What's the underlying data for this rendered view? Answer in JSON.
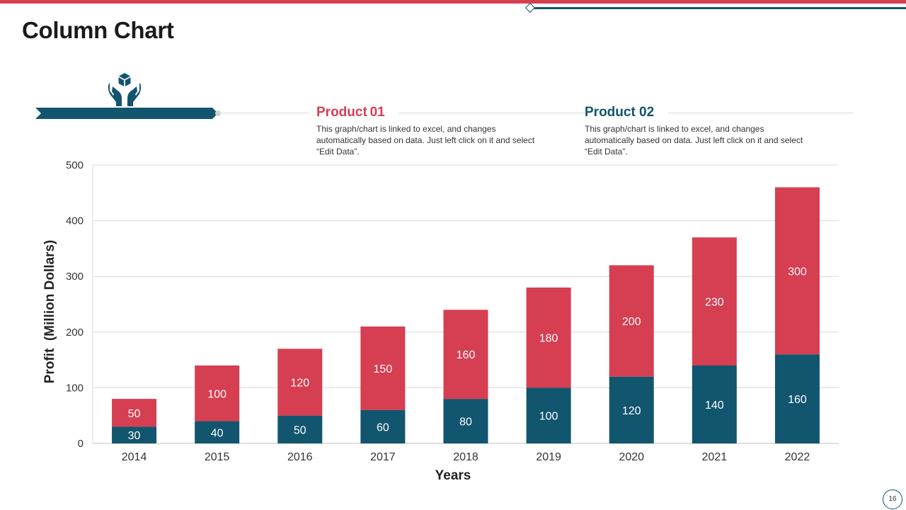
{
  "page": {
    "title": "Column Chart",
    "page_number": "16"
  },
  "icons": {
    "header": "hands-holding-cube-icon"
  },
  "colors": {
    "product01": "#d63e52",
    "product02": "#12556e",
    "grid": "#d9d9d9"
  },
  "legend": [
    {
      "name": "Product 01",
      "display": "Product 01",
      "description": "This graph/chart is linked to excel, and changes automatically based on data. Just left click on it and select “Edit Data”."
    },
    {
      "name": "Product 02",
      "display": "Product 02",
      "description": "This graph/chart is linked to excel, and changes automatically based on data. Just left click on it and select “Edit Data”."
    }
  ],
  "chart_data": {
    "type": "bar",
    "stacked": true,
    "title": "",
    "xlabel": "Years",
    "ylabel": "Profit  (Million Dollars)",
    "categories": [
      "2014",
      "2015",
      "2016",
      "2017",
      "2018",
      "2019",
      "2020",
      "2021",
      "2022"
    ],
    "series": [
      {
        "name": "Product 02",
        "color": "#12556e",
        "values": [
          30,
          40,
          50,
          60,
          80,
          100,
          120,
          140,
          160
        ]
      },
      {
        "name": "Product 01",
        "color": "#d63e52",
        "values": [
          50,
          100,
          120,
          150,
          160,
          180,
          200,
          230,
          300
        ]
      }
    ],
    "ylim": [
      0,
      500
    ],
    "yticks": [
      0,
      100,
      200,
      300,
      400,
      500
    ],
    "grid": true,
    "data_labels": true
  }
}
